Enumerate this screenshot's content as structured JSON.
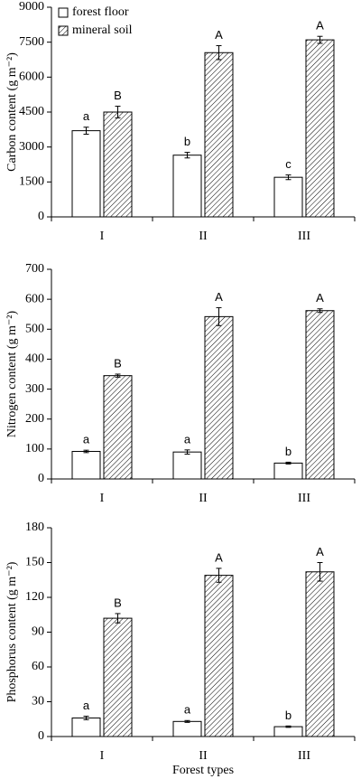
{
  "chart_data": [
    {
      "type": "bar",
      "y_label": "Carbon content (g m⁻²)",
      "categories": [
        "I",
        "II",
        "III"
      ],
      "series": [
        {
          "name": "forest floor",
          "color": "#ffffff",
          "values": [
            3700,
            2650,
            1700
          ],
          "errors": [
            150,
            120,
            100
          ],
          "letters": [
            "a",
            "b",
            "c"
          ]
        },
        {
          "name": "mineral soil",
          "color": "#ffffff",
          "hatch": true,
          "values": [
            4500,
            7050,
            7600
          ],
          "errors": [
            250,
            300,
            150
          ],
          "letters": [
            "B",
            "A",
            "A"
          ]
        }
      ],
      "ylim": [
        0,
        9000
      ],
      "yticks": [
        0,
        1500,
        3000,
        4500,
        6000,
        7500,
        9000
      ],
      "legend": "upper left"
    },
    {
      "type": "bar",
      "y_label": "Nitrogen content (g m⁻²)",
      "categories": [
        "I",
        "II",
        "III"
      ],
      "series": [
        {
          "color": "#ffffff",
          "values": [
            92,
            90,
            53
          ],
          "errors": [
            4,
            7,
            3
          ],
          "letters": [
            "a",
            "a",
            "b"
          ]
        },
        {
          "color": "#ffffff",
          "hatch": true,
          "values": [
            345,
            542,
            562
          ],
          "errors": [
            5,
            30,
            6
          ],
          "letters": [
            "B",
            "A",
            "A"
          ]
        }
      ],
      "ylim": [
        0,
        700
      ],
      "yticks": [
        0,
        100,
        200,
        300,
        400,
        500,
        600,
        700
      ]
    },
    {
      "type": "bar",
      "y_label": "Phosphorus content (g m⁻²)",
      "x_label": "Forest types",
      "categories": [
        "I",
        "II",
        "III"
      ],
      "series": [
        {
          "color": "#ffffff",
          "values": [
            16,
            13,
            8.5
          ],
          "errors": [
            1.5,
            0.8,
            0.6
          ],
          "letters": [
            "a",
            "a",
            "b"
          ]
        },
        {
          "color": "#ffffff",
          "hatch": true,
          "values": [
            102,
            139,
            142
          ],
          "errors": [
            4,
            6,
            8
          ],
          "letters": [
            "B",
            "A",
            "A"
          ]
        }
      ],
      "ylim": [
        0,
        180
      ],
      "yticks": [
        0,
        30,
        60,
        90,
        120,
        150,
        180
      ]
    }
  ]
}
